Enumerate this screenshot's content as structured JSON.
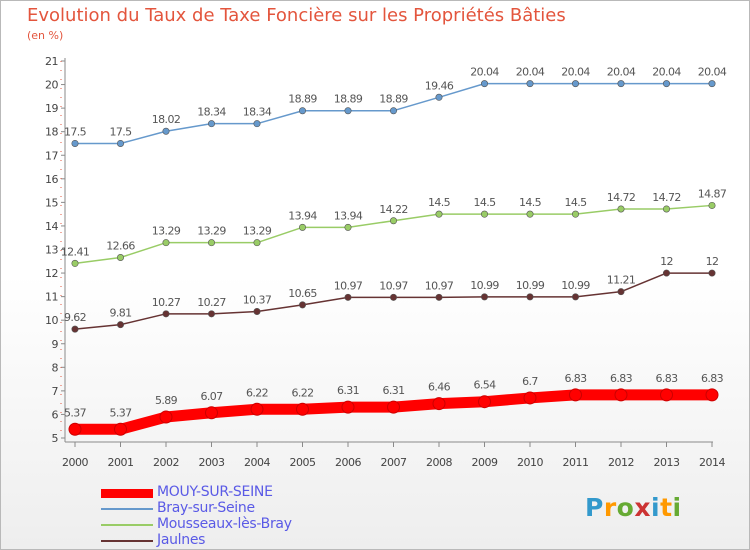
{
  "title": "Evolution du Taux de Taxe Foncière sur les Propriétés Bâties",
  "unit": "(en %)",
  "logo_text": "Proxiti",
  "colors": {
    "title": "#e3553d",
    "axis": "#8a8a8a",
    "grid": "#e3553d",
    "legend_text": "#5a5ae6"
  },
  "chart_data": {
    "type": "line",
    "title": "Evolution du Taux de Taxe Foncière sur les Propriétés Bâties",
    "ylabel": "(en %)",
    "xlabel": "",
    "x": [
      "2000",
      "2001",
      "2002",
      "2003",
      "2004",
      "2005",
      "2006",
      "2007",
      "2008",
      "2009",
      "2010",
      "2011",
      "2012",
      "2013",
      "2014"
    ],
    "yticks": [
      "5",
      "6",
      "7",
      "8",
      "9",
      "10",
      "11",
      "12",
      "13",
      "14",
      "15",
      "16",
      "17",
      "18",
      "19",
      "20",
      "21"
    ],
    "ylim": [
      5,
      21
    ],
    "grid": false,
    "legend_position": "bottom-left",
    "series": [
      {
        "name": "MOUY-SUR-SEINE",
        "color": "#ff0000",
        "values": [
          5.37,
          5.37,
          5.89,
          6.07,
          6.22,
          6.22,
          6.31,
          6.31,
          6.46,
          6.54,
          6.7,
          6.83,
          6.83,
          6.83,
          6.83
        ],
        "labels": [
          "5.37",
          "5.37",
          "5.89",
          "6.07",
          "6.22",
          "6.22",
          "6.31",
          "6.31",
          "6.46",
          "6.54",
          "6.7",
          "6.83",
          "6.83",
          "6.83",
          "6.83"
        ]
      },
      {
        "name": "Bray-sur-Seine",
        "color": "#6699cc",
        "values": [
          17.5,
          17.5,
          18.02,
          18.34,
          18.34,
          18.89,
          18.89,
          18.89,
          19.46,
          20.04,
          20.04,
          20.04,
          20.04,
          20.04,
          20.04
        ],
        "labels": [
          "17.5",
          "17.5",
          "18.02",
          "18.34",
          "18.34",
          "18.89",
          "18.89",
          "18.89",
          "19.46",
          "20.04",
          "20.04",
          "20.04",
          "20.04",
          "20.04",
          "20.04"
        ]
      },
      {
        "name": "Mousseaux-lès-Bray",
        "color": "#99cc66",
        "values": [
          12.41,
          12.66,
          13.29,
          13.29,
          13.29,
          13.94,
          13.94,
          14.22,
          14.5,
          14.5,
          14.5,
          14.5,
          14.72,
          14.72,
          14.87
        ],
        "labels": [
          "12.41",
          "12.66",
          "13.29",
          "13.29",
          "13.29",
          "13.94",
          "13.94",
          "14.22",
          "14.5",
          "14.5",
          "14.5",
          "14.5",
          "14.72",
          "14.72",
          "14.87"
        ]
      },
      {
        "name": "Jaulnes",
        "color": "#663333",
        "values": [
          9.62,
          9.81,
          10.27,
          10.27,
          10.37,
          10.65,
          10.97,
          10.97,
          10.97,
          10.99,
          10.99,
          10.99,
          11.21,
          12,
          12
        ],
        "labels": [
          "9.62",
          "9.81",
          "10.27",
          "10.27",
          "10.37",
          "10.65",
          "10.97",
          "10.97",
          "10.97",
          "10.99",
          "10.99",
          "10.99",
          "11.21",
          "12",
          "12"
        ]
      }
    ]
  }
}
